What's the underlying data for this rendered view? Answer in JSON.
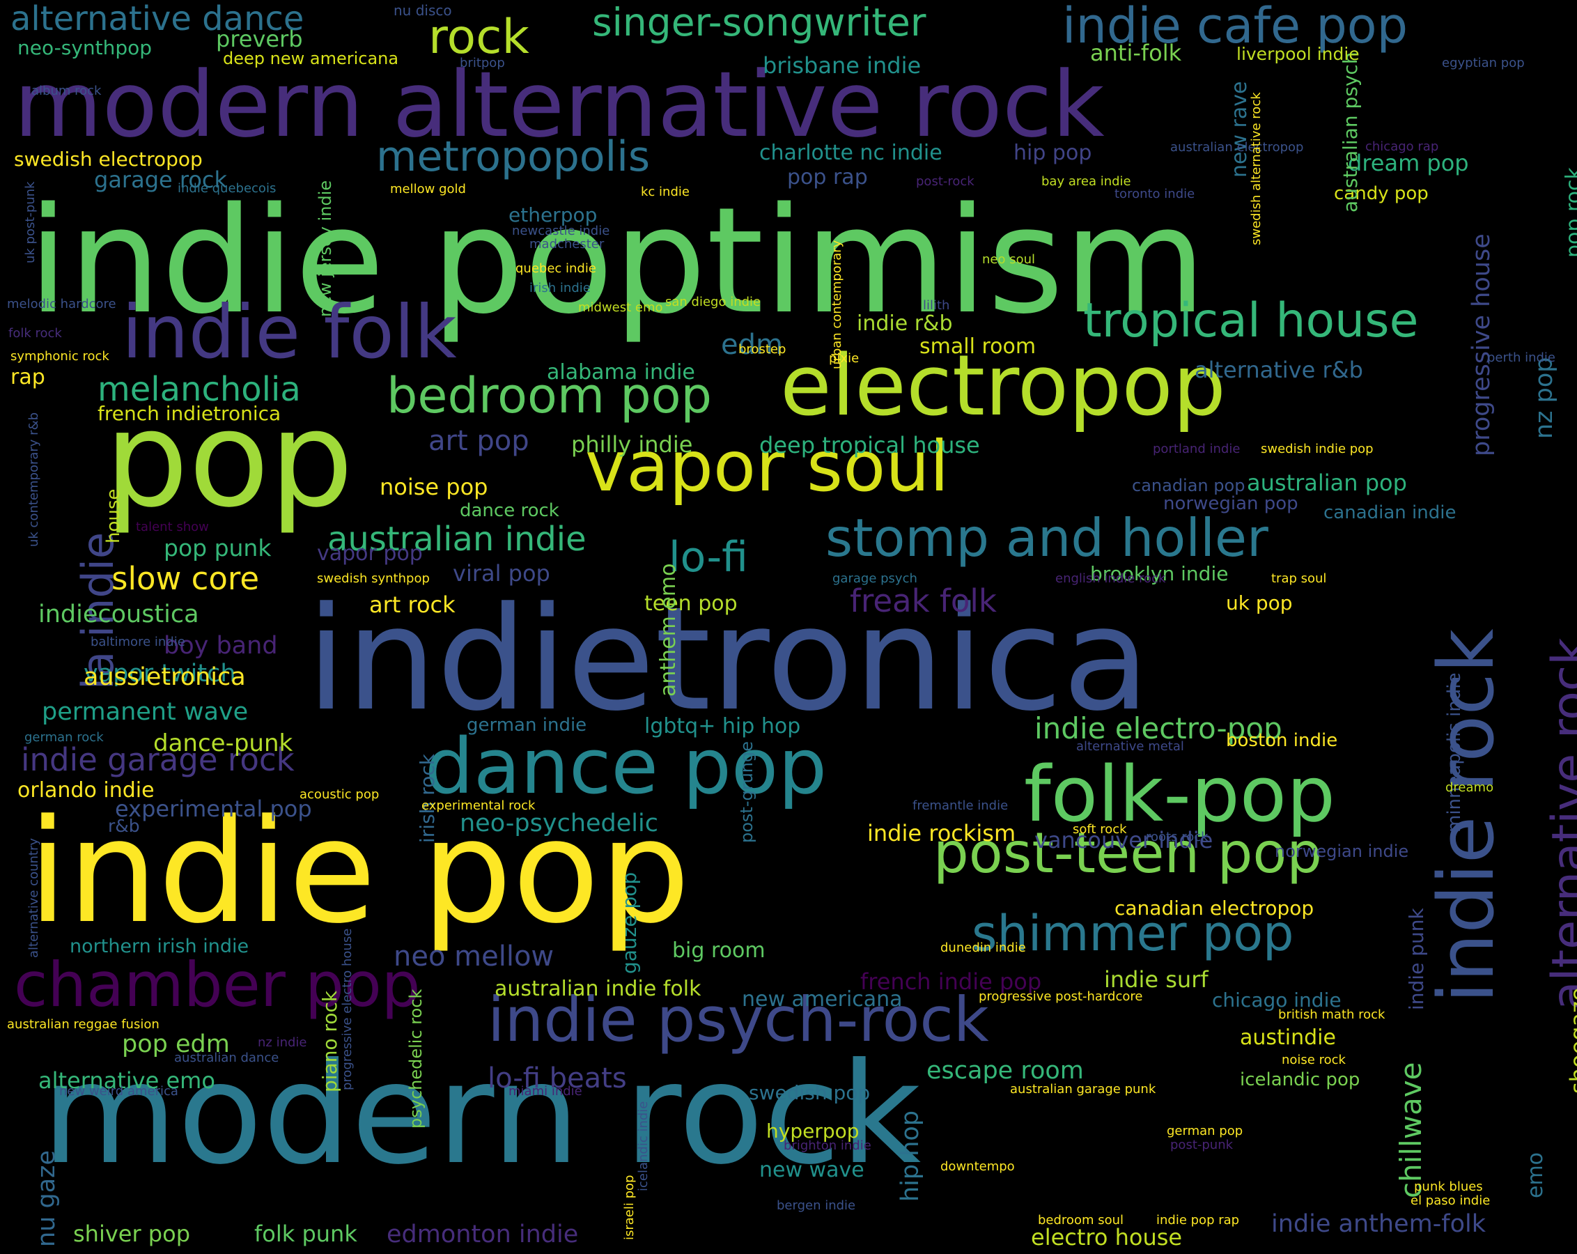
{
  "words": [
    {
      "text": "indie poptimism",
      "color": "#5ec962"
    },
    {
      "text": "pop",
      "color": "#a0da39"
    },
    {
      "text": "indietronica",
      "color": "#3b528b"
    },
    {
      "text": "indie pop",
      "color": "#fde725"
    },
    {
      "text": "modern rock",
      "color": "#2a788e"
    },
    {
      "text": "modern alternative rock",
      "color": "#472d7b"
    },
    {
      "text": "electropop",
      "color": "#b5de2b"
    },
    {
      "text": "vapor soul",
      "color": "#d8e219"
    },
    {
      "text": "indie rock",
      "color": "#3b528b"
    },
    {
      "text": "indie folk",
      "color": "#443983"
    },
    {
      "text": "dance pop",
      "color": "#25858e"
    },
    {
      "text": "folk-pop",
      "color": "#5ec962"
    },
    {
      "text": "alternative rock",
      "color": "#472d7b"
    },
    {
      "text": "post-teen pop",
      "color": "#7ad151"
    },
    {
      "text": "stomp and holler",
      "color": "#2a788e"
    },
    {
      "text": "indie psych-rock",
      "color": "#3e4989"
    },
    {
      "text": "chamber pop",
      "color": "#440154"
    },
    {
      "text": "shimmer pop",
      "color": "#2a788e"
    },
    {
      "text": "tropical house",
      "color": "#35b779"
    },
    {
      "text": "bedroom pop",
      "color": "#5ec962"
    },
    {
      "text": "indie cafe pop",
      "color": "#31688e"
    },
    {
      "text": "metropopolis",
      "color": "#2c728e"
    },
    {
      "text": "rock",
      "color": "#b5de2b"
    },
    {
      "text": "singer-songwriter",
      "color": "#35b779"
    },
    {
      "text": "alternative dance",
      "color": "#2c728e"
    },
    {
      "text": "melancholia",
      "color": "#2db27d"
    },
    {
      "text": "australian indie",
      "color": "#35b779"
    },
    {
      "text": "lo-fi",
      "color": "#21918c"
    },
    {
      "text": "la indie",
      "color": "#404688"
    },
    {
      "text": "slow core",
      "color": "#fde725"
    },
    {
      "text": "indie garage rock",
      "color": "#453781"
    },
    {
      "text": "neo mellow",
      "color": "#3e4989"
    },
    {
      "text": "lo-fi beats",
      "color": "#433e85"
    },
    {
      "text": "freak folk",
      "color": "#482475"
    },
    {
      "text": "indie electro-pop",
      "color": "#5ec962"
    },
    {
      "text": "escape room",
      "color": "#35b779"
    },
    {
      "text": "pop edm",
      "color": "#7ad151"
    },
    {
      "text": "alternative emo",
      "color": "#35b779"
    },
    {
      "text": "chillwave",
      "color": "#5ec962"
    },
    {
      "text": "hip hop",
      "color": "#2c728e"
    },
    {
      "text": "permanent wave",
      "color": "#1fa088"
    },
    {
      "text": "vapor twitch",
      "color": "#21918c"
    },
    {
      "text": "indiecoustica",
      "color": "#5ec962"
    },
    {
      "text": "art pop",
      "color": "#404688"
    },
    {
      "text": "philly indie",
      "color": "#7ad151"
    },
    {
      "text": "deep tropical house",
      "color": "#2db27d"
    },
    {
      "text": "australian pop",
      "color": "#2db27d"
    },
    {
      "text": "neo-psychedelic",
      "color": "#21918c"
    },
    {
      "text": "indie rockism",
      "color": "#fde725"
    },
    {
      "text": "vancouver indie",
      "color": "#3e4989"
    },
    {
      "text": "indie surf",
      "color": "#aadc32"
    },
    {
      "text": "french indie pop",
      "color": "#440154"
    },
    {
      "text": "new americana",
      "color": "#2c728e"
    },
    {
      "text": "chicago indie",
      "color": "#2c728e"
    },
    {
      "text": "austindie",
      "color": "#d8e219"
    },
    {
      "text": "australian indie folk",
      "color": "#b5de2b"
    },
    {
      "text": "edmonton indie",
      "color": "#472d7b"
    },
    {
      "text": "electro house",
      "color": "#c2df23"
    },
    {
      "text": "indie anthem-folk",
      "color": "#3e4989"
    },
    {
      "text": "shiver pop",
      "color": "#7ad151"
    },
    {
      "text": "folk punk",
      "color": "#5ec962"
    },
    {
      "text": "nu gaze",
      "color": "#31688e"
    },
    {
      "text": "new wave",
      "color": "#21918c"
    },
    {
      "text": "hyperpop",
      "color": "#c2df23"
    },
    {
      "text": "swedish pop",
      "color": "#2c728e"
    },
    {
      "text": "alternative r&b",
      "color": "#31688e"
    },
    {
      "text": "small room",
      "color": "#d8e219"
    },
    {
      "text": "indie r&b",
      "color": "#aadc32"
    },
    {
      "text": "edm",
      "color": "#2c728e"
    },
    {
      "text": "alabama indie",
      "color": "#35b779"
    },
    {
      "text": "french indietronica",
      "color": "#d8e219"
    },
    {
      "text": "rap",
      "color": "#fde725"
    },
    {
      "text": "charlotte nc indie",
      "color": "#21918c"
    },
    {
      "text": "hip pop",
      "color": "#414487"
    },
    {
      "text": "pop rap",
      "color": "#3b528b"
    },
    {
      "text": "dream pop",
      "color": "#2db27d"
    },
    {
      "text": "candy pop",
      "color": "#d8e219"
    },
    {
      "text": "pop rock",
      "color": "#2db27d"
    },
    {
      "text": "garage rock",
      "color": "#2c728e"
    },
    {
      "text": "swedish electropop",
      "color": "#fde725"
    },
    {
      "text": "etherpop",
      "color": "#2c728e"
    },
    {
      "text": "australian psych",
      "color": "#5ec962"
    },
    {
      "text": "new rave",
      "color": "#2c728e"
    },
    {
      "text": "brisbane indie",
      "color": "#21918c"
    },
    {
      "text": "anti-folk",
      "color": "#7ad151"
    },
    {
      "text": "liverpool indie",
      "color": "#c2df23"
    },
    {
      "text": "preverb",
      "color": "#5ec962"
    },
    {
      "text": "neo-synthpop",
      "color": "#35b779"
    },
    {
      "text": "deep new americana",
      "color": "#d8e219"
    },
    {
      "text": "noise pop",
      "color": "#fde725"
    },
    {
      "text": "dance rock",
      "color": "#5ec962"
    },
    {
      "text": "pop punk",
      "color": "#35b779"
    },
    {
      "text": "vapor pop",
      "color": "#443983"
    },
    {
      "text": "viral pop",
      "color": "#3e4989"
    },
    {
      "text": "art rock",
      "color": "#fde725"
    },
    {
      "text": "teen pop",
      "color": "#b5de2b"
    },
    {
      "text": "boy band",
      "color": "#482475"
    },
    {
      "text": "aussietronica",
      "color": "#fde725"
    },
    {
      "text": "dance-punk",
      "color": "#b5de2b"
    },
    {
      "text": "experimental pop",
      "color": "#3b528b"
    },
    {
      "text": "r&b",
      "color": "#3b528b"
    },
    {
      "text": "orlando indie",
      "color": "#fde725"
    },
    {
      "text": "northern irish indie",
      "color": "#21918c"
    },
    {
      "text": "lgbtq+ hip hop",
      "color": "#21918c"
    },
    {
      "text": "german indie",
      "color": "#2c728e"
    },
    {
      "text": "norwegian pop",
      "color": "#3e4989"
    },
    {
      "text": "canadian indie",
      "color": "#2c728e"
    },
    {
      "text": "brooklyn indie",
      "color": "#5ec962"
    },
    {
      "text": "uk pop",
      "color": "#fde725"
    },
    {
      "text": "nz pop",
      "color": "#2c728e"
    },
    {
      "text": "progressive house",
      "color": "#3e4989"
    },
    {
      "text": "boston indie",
      "color": "#fde725"
    },
    {
      "text": "norwegian indie",
      "color": "#3e4989"
    },
    {
      "text": "canadian electropop",
      "color": "#fde725"
    },
    {
      "text": "minneapolis indie",
      "color": "#3b528b"
    },
    {
      "text": "indie punk",
      "color": "#3e4989"
    },
    {
      "text": "big room",
      "color": "#5ec962"
    },
    {
      "text": "irish rock",
      "color": "#31688e"
    },
    {
      "text": "gauze pop",
      "color": "#21918c"
    },
    {
      "text": "piano rock",
      "color": "#a0da39"
    },
    {
      "text": "anthem emo",
      "color": "#7ad151"
    },
    {
      "text": "post-grunge",
      "color": "#2c728e"
    },
    {
      "text": "emo",
      "color": "#2c728e"
    },
    {
      "text": "shoegaze",
      "color": "#c2df23"
    },
    {
      "text": "psychedelic rock",
      "color": "#7ad151"
    },
    {
      "text": "house",
      "color": "#c2df23"
    },
    {
      "text": "canadian pop",
      "color": "#3b528b"
    },
    {
      "text": "icelandic pop",
      "color": "#7ad151"
    },
    {
      "text": "nu disco",
      "color": "#3b528b"
    },
    {
      "text": "album rock",
      "color": "#3b528b"
    },
    {
      "text": "britpop",
      "color": "#3b528b"
    },
    {
      "text": "egyptian pop",
      "color": "#3b528b"
    },
    {
      "text": "australian electropop",
      "color": "#3b528b"
    },
    {
      "text": "chicago rap",
      "color": "#482475"
    },
    {
      "text": "indie quebecois",
      "color": "#2c728e"
    },
    {
      "text": "mellow gold",
      "color": "#fde725"
    },
    {
      "text": "post-rock",
      "color": "#482475"
    },
    {
      "text": "bay area indie",
      "color": "#c2df23"
    },
    {
      "text": "kc indie",
      "color": "#fde725"
    },
    {
      "text": "toronto indie",
      "color": "#3e4989"
    },
    {
      "text": "newcastle indie",
      "color": "#3b528b"
    },
    {
      "text": "madchester",
      "color": "#3b528b"
    },
    {
      "text": "neo soul",
      "color": "#b5de2b"
    },
    {
      "text": "quebec indie",
      "color": "#fde725"
    },
    {
      "text": "irish indie",
      "color": "#2c728e"
    },
    {
      "text": "melodic hardcore",
      "color": "#3b528b"
    },
    {
      "text": "midwest emo",
      "color": "#c2df23"
    },
    {
      "text": "san diego indie",
      "color": "#c2df23"
    },
    {
      "text": "lilith",
      "color": "#3e4989"
    },
    {
      "text": "folk rock",
      "color": "#472d7b"
    },
    {
      "text": "symphonic rock",
      "color": "#fde725"
    },
    {
      "text": "brostep",
      "color": "#fde725"
    },
    {
      "text": "pixie",
      "color": "#fde725"
    },
    {
      "text": "perth indie",
      "color": "#3b528b"
    },
    {
      "text": "portland indie",
      "color": "#482475"
    },
    {
      "text": "swedish indie pop",
      "color": "#fde725"
    },
    {
      "text": "talent show",
      "color": "#440154"
    },
    {
      "text": "swedish synthpop",
      "color": "#fde725"
    },
    {
      "text": "garage psych",
      "color": "#2c728e"
    },
    {
      "text": "english indie rock",
      "color": "#482475"
    },
    {
      "text": "trap soul",
      "color": "#fde725"
    },
    {
      "text": "baltimore indie",
      "color": "#3b528b"
    },
    {
      "text": "german rock",
      "color": "#2c728e"
    },
    {
      "text": "alternative metal",
      "color": "#3e4989"
    },
    {
      "text": "acoustic pop",
      "color": "#fde725"
    },
    {
      "text": "experimental rock",
      "color": "#fde725"
    },
    {
      "text": "fremantle indie",
      "color": "#3b528b"
    },
    {
      "text": "dreamo",
      "color": "#c2df23"
    },
    {
      "text": "soft rock",
      "color": "#fde725"
    },
    {
      "text": "roots rock",
      "color": "#3b528b"
    },
    {
      "text": "dunedin indie",
      "color": "#fde725"
    },
    {
      "text": "progressive post-hardcore",
      "color": "#fde725"
    },
    {
      "text": "british math rock",
      "color": "#fde725"
    },
    {
      "text": "australian reggae fusion",
      "color": "#fde725"
    },
    {
      "text": "nz indie",
      "color": "#482475"
    },
    {
      "text": "australian dance",
      "color": "#3b528b"
    },
    {
      "text": "noise rock",
      "color": "#fde725"
    },
    {
      "text": "new weird america",
      "color": "#3b528b"
    },
    {
      "text": "miami indie",
      "color": "#482475"
    },
    {
      "text": "australian garage punk",
      "color": "#fde725"
    },
    {
      "text": "brighton indie",
      "color": "#482475"
    },
    {
      "text": "downtempo",
      "color": "#fde725"
    },
    {
      "text": "german pop",
      "color": "#fde725"
    },
    {
      "text": "post-punk",
      "color": "#482475"
    },
    {
      "text": "bergen indie",
      "color": "#3b528b"
    },
    {
      "text": "bedroom soul",
      "color": "#fde725"
    },
    {
      "text": "indie pop rap",
      "color": "#fde725"
    },
    {
      "text": "punk blues",
      "color": "#fde725"
    },
    {
      "text": "el paso indie",
      "color": "#fde725"
    },
    {
      "text": "israeli pop",
      "color": "#fde725"
    },
    {
      "text": "icelandic indie",
      "color": "#3b528b"
    },
    {
      "text": "uk post-punk",
      "color": "#3b528b"
    },
    {
      "text": "new jersey indie",
      "color": "#5ec962"
    },
    {
      "text": "urban contemporary",
      "color": "#fde725"
    },
    {
      "text": "swedish alternative rock",
      "color": "#fde725"
    },
    {
      "text": "uk contemporary r&b",
      "color": "#3b528b"
    },
    {
      "text": "alternative country",
      "color": "#3b528b"
    },
    {
      "text": "progressive electro house",
      "color": "#3b528b"
    }
  ]
}
